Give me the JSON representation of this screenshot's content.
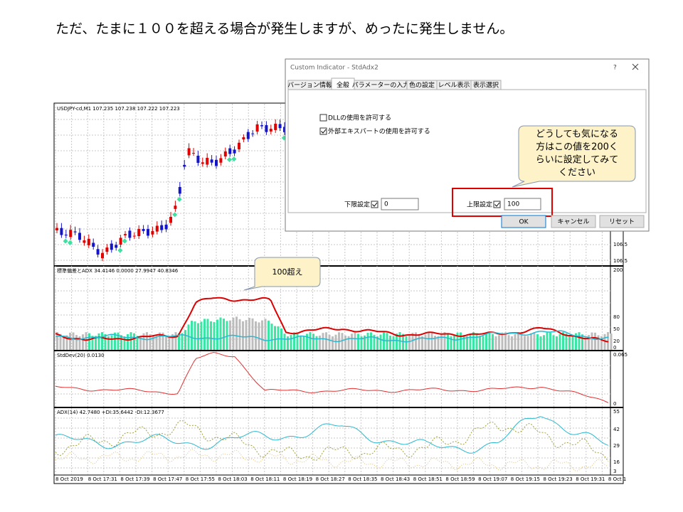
{
  "heading": "ただ、たまに１００を超える場合が発生しますが、めったに発生しません。",
  "chart": {
    "main_title": "USDJPY-cd,M1 107.235 107.238 107.222 107.223",
    "main_axis": [
      "106.5",
      "106.5"
    ],
    "pane2_title": "標準偏差とADX 34.4146 0.0000 27.9947 40.8346",
    "pane2_axis": [
      "200",
      "80",
      "50",
      "20",
      "0"
    ],
    "pane3_title": "StdDev(20) 0.0130",
    "pane3_axis": [
      "0.065",
      "0"
    ],
    "pane4_title": "ADX(14) 42.7480 +DI:35.6442 -DI:12.3677",
    "pane4_axis": [
      "55",
      "42",
      "29",
      "16",
      "3"
    ],
    "x_labels": [
      "8 Oct 2019",
      "8 Oct 17:31",
      "8 Oct 17:39",
      "8 Oct 17:47",
      "8 Oct 17:55",
      "8 Oct 18:03",
      "8 Oct 18:11",
      "8 Oct 18:19",
      "8 Oct 18:27",
      "8 Oct 18:35",
      "8 Oct 18:43",
      "8 Oct 18:51",
      "8 Oct 18:59",
      "8 Oct 19:07",
      "8 Oct 19:15",
      "8 Oct 19:23",
      "8 Oct 19:31",
      "8 Oct 1"
    ]
  },
  "callout_over": "100超え",
  "dialog": {
    "title": "Custom Indicator - StdAdx2",
    "help": "?",
    "tabs": [
      "バージョン情報",
      "全般",
      "パラメーターの入力",
      "色の設定",
      "レベル表示",
      "表示選択"
    ],
    "checkbox_dll": "DLLの使用を許可する",
    "checkbox_expert": "外部エキスパートの使用を許可する",
    "lower_label": "下限設定",
    "lower_value": "0",
    "upper_label": "上限設定",
    "upper_value": "100",
    "buttons": [
      "OK",
      "キャンセル",
      "リセット"
    ]
  },
  "callout_tip": [
    "どうしても気になる",
    "方はこの値を200く",
    "らいに設定してみて",
    "ください"
  ]
}
